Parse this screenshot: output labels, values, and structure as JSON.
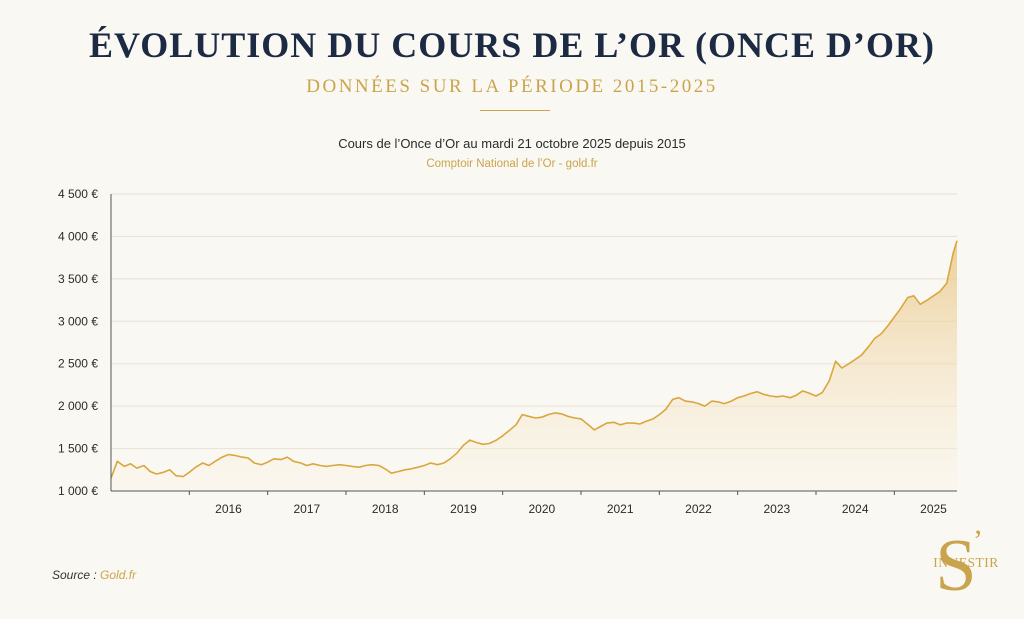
{
  "header": {
    "title": "ÉVOLUTION DU COURS DE L’OR (ONCE D’OR)",
    "subtitle": "DONNÉES SUR LA PÉRIODE 2015-2025",
    "caption": "Cours de l’Once d’Or au mardi 21 octobre 2025 depuis 2015",
    "caption_source": "Comptoir National de l’Or - gold.fr"
  },
  "footer": {
    "source_label": "Source :",
    "source_value": "Gold.fr"
  },
  "logo": {
    "letter": "S",
    "apostrophe": "’",
    "word": "INVESTIR"
  },
  "colors": {
    "title": "#1c2a44",
    "accent": "#c9a44c",
    "line": "#d9a73e",
    "background": "#faf8f3",
    "grid": "#e8e2d4"
  },
  "chart_data": {
    "type": "area",
    "title": "Cours de l’Once d’Or au mardi 21 octobre 2025 depuis 2015",
    "xlabel": "",
    "ylabel": "",
    "ylim": [
      1000,
      4500
    ],
    "y_ticks": [
      1000,
      1500,
      2000,
      2500,
      3000,
      3500,
      4000,
      4500
    ],
    "y_tick_labels": [
      "1 000 €",
      "1 500 €",
      "2 000 €",
      "2 500 €",
      "3 000 €",
      "3 500 €",
      "4 000 €",
      "4 500 €"
    ],
    "x_ticks": [
      2016,
      2017,
      2018,
      2019,
      2020,
      2021,
      2022,
      2023,
      2024,
      2025
    ],
    "x_tick_labels": [
      "2016",
      "2017",
      "2018",
      "2019",
      "2020",
      "2021",
      "2022",
      "2023",
      "2024",
      "2025"
    ],
    "xlim": [
      2015.0,
      2025.8
    ],
    "grid": true,
    "legend": "none",
    "x": [
      2015.0,
      2015.08,
      2015.17,
      2015.25,
      2015.33,
      2015.42,
      2015.5,
      2015.58,
      2015.67,
      2015.75,
      2015.83,
      2015.92,
      2016.0,
      2016.08,
      2016.17,
      2016.25,
      2016.33,
      2016.42,
      2016.5,
      2016.58,
      2016.67,
      2016.75,
      2016.83,
      2016.92,
      2017.0,
      2017.08,
      2017.17,
      2017.25,
      2017.33,
      2017.42,
      2017.5,
      2017.58,
      2017.67,
      2017.75,
      2017.83,
      2017.92,
      2018.0,
      2018.08,
      2018.17,
      2018.25,
      2018.33,
      2018.42,
      2018.5,
      2018.58,
      2018.67,
      2018.75,
      2018.83,
      2018.92,
      2019.0,
      2019.08,
      2019.17,
      2019.25,
      2019.33,
      2019.42,
      2019.5,
      2019.58,
      2019.67,
      2019.75,
      2019.83,
      2019.92,
      2020.0,
      2020.08,
      2020.17,
      2020.25,
      2020.33,
      2020.42,
      2020.5,
      2020.58,
      2020.67,
      2020.75,
      2020.83,
      2020.92,
      2021.0,
      2021.08,
      2021.17,
      2021.25,
      2021.33,
      2021.42,
      2021.5,
      2021.58,
      2021.67,
      2021.75,
      2021.83,
      2021.92,
      2022.0,
      2022.08,
      2022.17,
      2022.25,
      2022.33,
      2022.42,
      2022.5,
      2022.58,
      2022.67,
      2022.75,
      2022.83,
      2022.92,
      2023.0,
      2023.08,
      2023.17,
      2023.25,
      2023.33,
      2023.42,
      2023.5,
      2023.58,
      2023.67,
      2023.75,
      2023.83,
      2023.92,
      2024.0,
      2024.08,
      2024.17,
      2024.25,
      2024.33,
      2024.42,
      2024.5,
      2024.58,
      2024.67,
      2024.75,
      2024.83,
      2024.92,
      2025.0,
      2025.08,
      2025.17,
      2025.25,
      2025.33,
      2025.42,
      2025.5,
      2025.58,
      2025.67,
      2025.75,
      2025.8
    ],
    "series": [
      {
        "values": [
          1150,
          1350,
          1290,
          1320,
          1270,
          1300,
          1230,
          1200,
          1220,
          1250,
          1180,
          1170,
          1220,
          1280,
          1330,
          1300,
          1350,
          1400,
          1430,
          1420,
          1400,
          1390,
          1330,
          1310,
          1340,
          1380,
          1370,
          1400,
          1350,
          1330,
          1300,
          1320,
          1300,
          1290,
          1300,
          1310,
          1300,
          1290,
          1280,
          1300,
          1310,
          1300,
          1260,
          1210,
          1230,
          1250,
          1260,
          1280,
          1300,
          1330,
          1310,
          1330,
          1380,
          1450,
          1540,
          1600,
          1570,
          1550,
          1560,
          1600,
          1650,
          1710,
          1780,
          1900,
          1880,
          1860,
          1870,
          1900,
          1920,
          1910,
          1880,
          1860,
          1850,
          1790,
          1720,
          1760,
          1800,
          1810,
          1780,
          1800,
          1800,
          1790,
          1820,
          1850,
          1900,
          1960,
          2080,
          2100,
          2060,
          2050,
          2030,
          2000,
          2060,
          2050,
          2030,
          2060,
          2100,
          2120,
          2150,
          2170,
          2140,
          2120,
          2110,
          2120,
          2100,
          2130,
          2180,
          2150,
          2120,
          2160,
          2300,
          2530,
          2450,
          2500,
          2550,
          2600,
          2700,
          2800,
          2850,
          2950,
          3050,
          3150,
          3280,
          3300,
          3200,
          3250,
          3300,
          3350,
          3450,
          3800,
          3950
        ]
      }
    ]
  }
}
